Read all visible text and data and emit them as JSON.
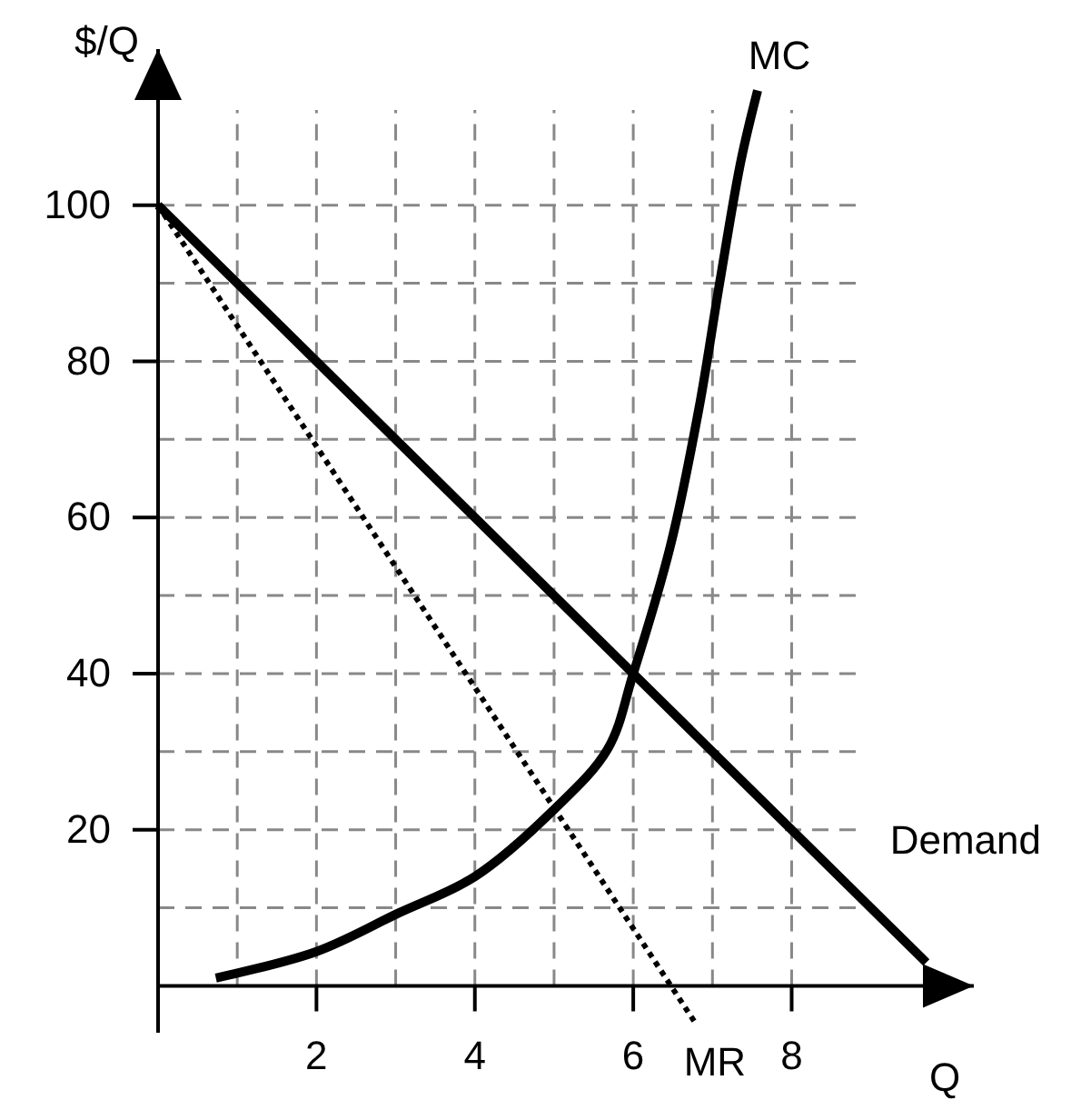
{
  "chart_data": {
    "type": "line",
    "xlabel": "Q",
    "ylabel": "$/Q",
    "xlim": [
      0,
      10.3
    ],
    "ylim": [
      -6,
      120
    ],
    "xticks": [
      {
        "value": 1,
        "label": null
      },
      2,
      {
        "value": 3,
        "label": null
      },
      4,
      {
        "value": 5,
        "label": null
      },
      6,
      {
        "value": 7,
        "label": null
      },
      8
    ],
    "yticks": [
      {
        "value": 10,
        "label": null
      },
      20,
      {
        "value": 30,
        "label": null
      },
      40,
      {
        "value": 50,
        "label": null
      },
      60,
      {
        "value": 70,
        "label": null
      },
      80,
      {
        "value": 90,
        "label": null
      },
      100
    ],
    "grid": true,
    "marker": "none",
    "series": [
      {
        "name": "Demand",
        "color": "#000000",
        "line_style": "solid",
        "x": [
          0,
          9.7
        ],
        "values": [
          100,
          3
        ]
      },
      {
        "name": "MR",
        "color": "#000000",
        "line_style": "dotted",
        "x": [
          0,
          6.8
        ],
        "values": [
          100,
          -5
        ]
      },
      {
        "name": "MC",
        "color": "#000000",
        "line_style": "solid",
        "x": [
          0.73,
          2,
          3.03,
          4,
          4.98,
          5.68,
          6,
          6.47,
          6.83,
          7.09,
          7.36,
          7.57
        ],
        "values": [
          1,
          4.4,
          9.3,
          14,
          22.4,
          30.4,
          40,
          56.4,
          74,
          90,
          105.7,
          114.7
        ]
      }
    ]
  }
}
